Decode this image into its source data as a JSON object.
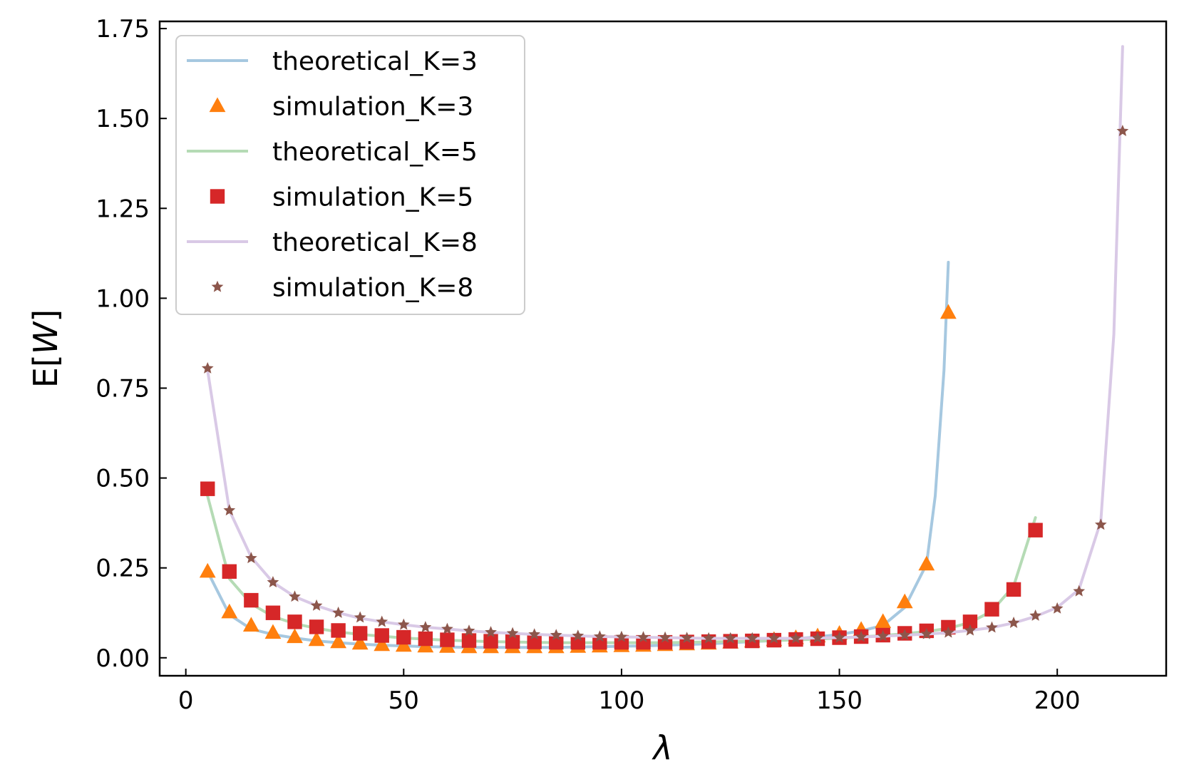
{
  "chart_data": {
    "type": "line",
    "xlabel": "λ",
    "ylabel_prefix": "E[",
    "ylabel_var": "W",
    "ylabel_suffix": "]",
    "xlim": [
      -6,
      225
    ],
    "ylim": [
      -0.05,
      1.77
    ],
    "xticks": [
      0,
      50,
      100,
      150,
      200
    ],
    "xtick_labels": [
      "0",
      "50",
      "100",
      "150",
      "200"
    ],
    "yticks": [
      0,
      0.25,
      0.5,
      0.75,
      1.0,
      1.25,
      1.5,
      1.75
    ],
    "ytick_labels": [
      "0.00",
      "0.25",
      "0.50",
      "0.75",
      "1.00",
      "1.25",
      "1.50",
      "1.75"
    ],
    "legend_position": "top-left",
    "series": [
      {
        "name": "theoretical_K=3",
        "kind": "line",
        "color": "#a6c8e0",
        "x": [
          5,
          10,
          15,
          20,
          25,
          30,
          35,
          40,
          45,
          50,
          55,
          60,
          65,
          70,
          75,
          80,
          85,
          90,
          95,
          100,
          105,
          110,
          115,
          120,
          125,
          130,
          135,
          140,
          145,
          150,
          155,
          160,
          165,
          170,
          172,
          174,
          175
        ],
        "y": [
          0.24,
          0.12,
          0.08,
          0.065,
          0.055,
          0.047,
          0.042,
          0.038,
          0.035,
          0.033,
          0.031,
          0.03,
          0.029,
          0.029,
          0.029,
          0.029,
          0.029,
          0.03,
          0.031,
          0.032,
          0.033,
          0.035,
          0.037,
          0.039,
          0.042,
          0.045,
          0.048,
          0.053,
          0.058,
          0.065,
          0.075,
          0.09,
          0.14,
          0.26,
          0.45,
          0.8,
          1.1
        ]
      },
      {
        "name": "simulation_K=3",
        "kind": "marker",
        "marker": "triangle",
        "color": "#ff7f0e",
        "x": [
          5,
          10,
          15,
          20,
          25,
          30,
          35,
          40,
          45,
          50,
          55,
          60,
          65,
          70,
          75,
          80,
          85,
          90,
          95,
          100,
          105,
          110,
          115,
          120,
          125,
          130,
          135,
          140,
          145,
          150,
          155,
          160,
          165,
          170,
          175
        ],
        "y": [
          0.24,
          0.127,
          0.09,
          0.07,
          0.058,
          0.05,
          0.044,
          0.04,
          0.036,
          0.034,
          0.032,
          0.031,
          0.03,
          0.03,
          0.03,
          0.03,
          0.03,
          0.031,
          0.032,
          0.033,
          0.034,
          0.036,
          0.038,
          0.04,
          0.043,
          0.046,
          0.05,
          0.055,
          0.06,
          0.067,
          0.078,
          0.1,
          0.155,
          0.26,
          0.96
        ]
      },
      {
        "name": "theoretical_K=5",
        "kind": "line",
        "color": "#b5dbb5",
        "x": [
          5,
          10,
          15,
          20,
          25,
          30,
          35,
          40,
          45,
          50,
          55,
          60,
          65,
          70,
          75,
          80,
          85,
          90,
          95,
          100,
          105,
          110,
          115,
          120,
          125,
          130,
          135,
          140,
          145,
          150,
          155,
          160,
          165,
          170,
          175,
          180,
          185,
          190,
          195
        ],
        "y": [
          0.45,
          0.22,
          0.15,
          0.115,
          0.095,
          0.082,
          0.072,
          0.065,
          0.06,
          0.055,
          0.052,
          0.049,
          0.047,
          0.045,
          0.044,
          0.043,
          0.042,
          0.042,
          0.042,
          0.042,
          0.042,
          0.042,
          0.043,
          0.044,
          0.045,
          0.046,
          0.048,
          0.05,
          0.052,
          0.055,
          0.058,
          0.062,
          0.067,
          0.073,
          0.082,
          0.098,
          0.13,
          0.2,
          0.39
        ]
      },
      {
        "name": "simulation_K=5",
        "kind": "marker",
        "marker": "square",
        "color": "#d62728",
        "x": [
          5,
          10,
          15,
          20,
          25,
          30,
          35,
          40,
          45,
          50,
          55,
          60,
          65,
          70,
          75,
          80,
          85,
          90,
          95,
          100,
          105,
          110,
          115,
          120,
          125,
          130,
          135,
          140,
          145,
          150,
          155,
          160,
          165,
          170,
          175,
          180,
          185,
          190,
          195
        ],
        "y": [
          0.47,
          0.24,
          0.16,
          0.125,
          0.1,
          0.086,
          0.076,
          0.068,
          0.062,
          0.057,
          0.053,
          0.05,
          0.048,
          0.046,
          0.045,
          0.044,
          0.043,
          0.043,
          0.043,
          0.043,
          0.043,
          0.043,
          0.044,
          0.045,
          0.046,
          0.047,
          0.049,
          0.051,
          0.053,
          0.056,
          0.059,
          0.063,
          0.068,
          0.075,
          0.085,
          0.1,
          0.135,
          0.19,
          0.355
        ]
      },
      {
        "name": "theoretical_K=8",
        "kind": "line",
        "color": "#d9c9e6",
        "x": [
          5,
          10,
          15,
          20,
          25,
          30,
          35,
          40,
          45,
          50,
          55,
          60,
          65,
          70,
          75,
          80,
          85,
          90,
          95,
          100,
          105,
          110,
          115,
          120,
          125,
          130,
          135,
          140,
          145,
          150,
          155,
          160,
          165,
          170,
          175,
          180,
          185,
          190,
          195,
          200,
          205,
          210,
          213,
          215
        ],
        "y": [
          0.8,
          0.41,
          0.28,
          0.21,
          0.17,
          0.145,
          0.125,
          0.11,
          0.1,
          0.092,
          0.085,
          0.08,
          0.075,
          0.071,
          0.068,
          0.065,
          0.063,
          0.061,
          0.059,
          0.058,
          0.057,
          0.056,
          0.055,
          0.054,
          0.054,
          0.054,
          0.054,
          0.054,
          0.055,
          0.056,
          0.058,
          0.06,
          0.063,
          0.066,
          0.07,
          0.076,
          0.084,
          0.097,
          0.115,
          0.14,
          0.19,
          0.38,
          0.9,
          1.7
        ]
      },
      {
        "name": "simulation_K=8",
        "kind": "marker",
        "marker": "star",
        "color": "#8c564b",
        "x": [
          5,
          10,
          15,
          20,
          25,
          30,
          35,
          40,
          45,
          50,
          55,
          60,
          65,
          70,
          75,
          80,
          85,
          90,
          95,
          100,
          105,
          110,
          115,
          120,
          125,
          130,
          135,
          140,
          145,
          150,
          155,
          160,
          165,
          170,
          175,
          180,
          185,
          190,
          195,
          200,
          205,
          210,
          215
        ],
        "y": [
          0.805,
          0.41,
          0.277,
          0.21,
          0.17,
          0.145,
          0.125,
          0.112,
          0.1,
          0.092,
          0.085,
          0.08,
          0.075,
          0.071,
          0.068,
          0.065,
          0.063,
          0.061,
          0.059,
          0.058,
          0.057,
          0.056,
          0.055,
          0.054,
          0.054,
          0.054,
          0.054,
          0.054,
          0.055,
          0.056,
          0.058,
          0.06,
          0.063,
          0.066,
          0.07,
          0.076,
          0.084,
          0.097,
          0.117,
          0.137,
          0.185,
          0.37,
          1.465
        ]
      }
    ]
  }
}
